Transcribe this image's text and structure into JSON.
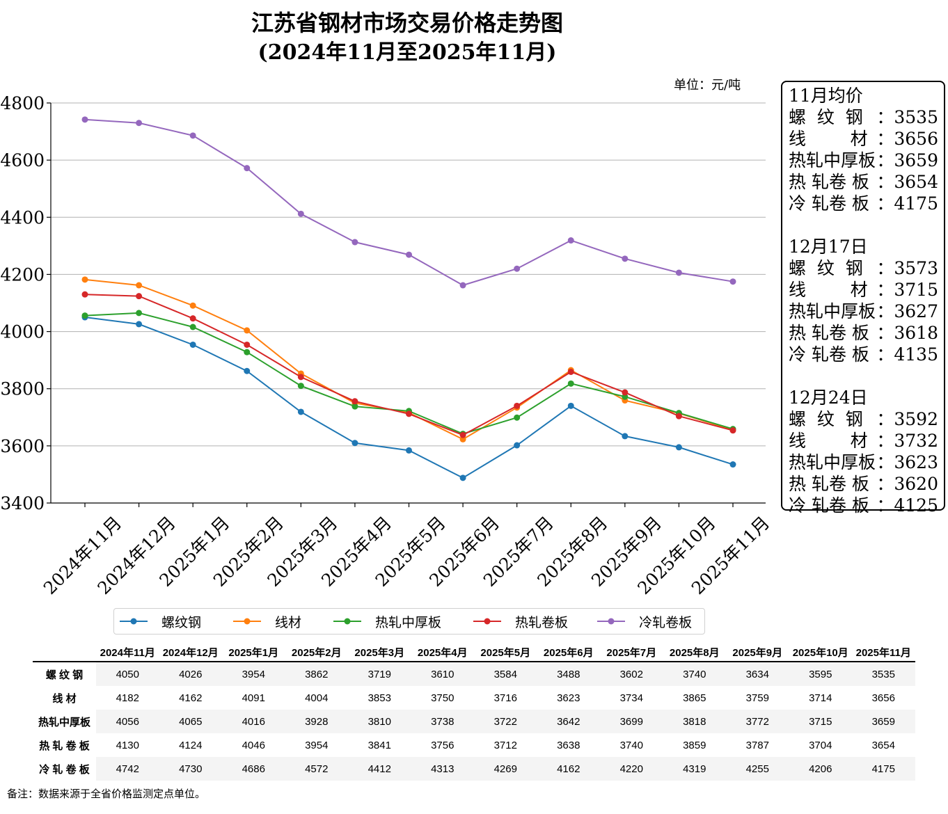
{
  "title_line1": "江苏省钢材市场交易价格走势图",
  "title_line2": "(2024年11月至2025年11月)",
  "unit_label": "单位：元/吨",
  "chart_data": {
    "type": "line",
    "categories": [
      "2024年11月",
      "2024年12月",
      "2025年1月",
      "2025年2月",
      "2025年3月",
      "2025年4月",
      "2025年5月",
      "2025年6月",
      "2025年7月",
      "2025年8月",
      "2025年9月",
      "2025年10月",
      "2025年11月"
    ],
    "ylim": [
      3400,
      4800
    ],
    "yticks": [
      3400,
      3600,
      3800,
      4000,
      4200,
      4400,
      4600,
      4800
    ],
    "grid": "horizontal",
    "series": [
      {
        "name": "螺纹钢",
        "color": "#1f77b4",
        "values": [
          4050,
          4026,
          3954,
          3862,
          3719,
          3610,
          3584,
          3488,
          3602,
          3740,
          3634,
          3595,
          3535
        ]
      },
      {
        "name": "线材",
        "color": "#ff7f0e",
        "values": [
          4182,
          4162,
          4091,
          4004,
          3853,
          3750,
          3716,
          3623,
          3734,
          3865,
          3759,
          3714,
          3656
        ]
      },
      {
        "name": "热轧中厚板",
        "color": "#2ca02c",
        "values": [
          4056,
          4065,
          4016,
          3928,
          3810,
          3738,
          3722,
          3642,
          3699,
          3818,
          3772,
          3715,
          3659
        ]
      },
      {
        "name": "热轧卷板",
        "color": "#d62728",
        "values": [
          4130,
          4124,
          4046,
          3954,
          3841,
          3756,
          3712,
          3638,
          3740,
          3859,
          3787,
          3704,
          3654
        ]
      },
      {
        "name": "冷轧卷板",
        "color": "#9467bd",
        "values": [
          4742,
          4730,
          4686,
          4572,
          4412,
          4313,
          4269,
          4162,
          4220,
          4319,
          4255,
          4206,
          4175
        ]
      }
    ]
  },
  "sidebox": {
    "groups": [
      {
        "title": "11月均价",
        "rows": [
          {
            "label": "螺  纹  钢",
            "sep": "：",
            "value": "3535"
          },
          {
            "label": "线        材",
            "sep": "：",
            "value": "3656"
          },
          {
            "label": "热轧中厚板",
            "sep": "：",
            "value": "3659"
          },
          {
            "label": "热 轧卷 板",
            "sep": "：",
            "value": "3654"
          },
          {
            "label": "冷 轧卷 板",
            "sep": "：",
            "value": "4175"
          }
        ]
      },
      {
        "title": "12月17日",
        "rows": [
          {
            "label": "螺  纹  钢",
            "sep": "：",
            "value": "3573"
          },
          {
            "label": "线        材",
            "sep": "：",
            "value": "3715"
          },
          {
            "label": "热轧中厚板",
            "sep": "：",
            "value": "3627"
          },
          {
            "label": "热 轧卷 板",
            "sep": "：",
            "value": "3618"
          },
          {
            "label": "冷 轧卷 板",
            "sep": "：",
            "value": "4135"
          }
        ]
      },
      {
        "title": "12月24日",
        "rows": [
          {
            "label": "螺  纹  钢",
            "sep": "：",
            "value": "3592"
          },
          {
            "label": "线        材",
            "sep": "：",
            "value": "3732"
          },
          {
            "label": "热轧中厚板",
            "sep": "：",
            "value": "3623"
          },
          {
            "label": "热 轧卷 板",
            "sep": "：",
            "value": "3620"
          },
          {
            "label": "冷 轧卷 板",
            "sep": "：",
            "value": "4125"
          }
        ]
      }
    ]
  },
  "table": {
    "columns": [
      "2024年11月",
      "2024年12月",
      "2025年1月",
      "2025年2月",
      "2025年3月",
      "2025年4月",
      "2025年5月",
      "2025年6月",
      "2025年7月",
      "2025年8月",
      "2025年9月",
      "2025年10月",
      "2025年11月"
    ],
    "rows": [
      {
        "label": "螺 纹 钢",
        "values": [
          4050,
          4026,
          3954,
          3862,
          3719,
          3610,
          3584,
          3488,
          3602,
          3740,
          3634,
          3595,
          3535
        ]
      },
      {
        "label": "线 材",
        "values": [
          4182,
          4162,
          4091,
          4004,
          3853,
          3750,
          3716,
          3623,
          3734,
          3865,
          3759,
          3714,
          3656
        ]
      },
      {
        "label": "热轧中厚板",
        "values": [
          4056,
          4065,
          4016,
          3928,
          3810,
          3738,
          3722,
          3642,
          3699,
          3818,
          3772,
          3715,
          3659
        ]
      },
      {
        "label": "热 轧 卷 板",
        "values": [
          4130,
          4124,
          4046,
          3954,
          3841,
          3756,
          3712,
          3638,
          3740,
          3859,
          3787,
          3704,
          3654
        ]
      },
      {
        "label": "冷 轧 卷 板",
        "values": [
          4742,
          4730,
          4686,
          4572,
          4412,
          4313,
          4269,
          4162,
          4220,
          4319,
          4255,
          4206,
          4175
        ]
      }
    ]
  },
  "note": "备注：数据来源于全省价格监测定点单位。"
}
